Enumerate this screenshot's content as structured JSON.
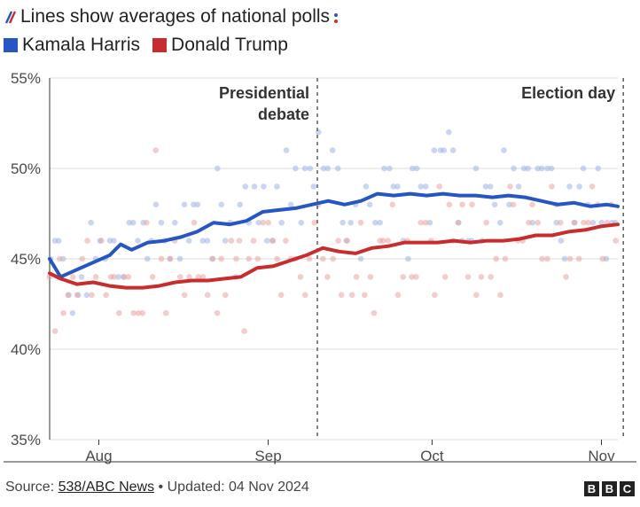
{
  "header": {
    "title": "Lines show averages of national polls",
    "legend": [
      {
        "label": "Kamala Harris",
        "color": "#2655c4"
      },
      {
        "label": "Donald Trump",
        "color": "#c82c2c"
      }
    ]
  },
  "chart_data": {
    "type": "line",
    "y_ticks": [
      {
        "value": 35,
        "label": "35%"
      },
      {
        "value": 40,
        "label": "40%"
      },
      {
        "value": 45,
        "label": "45%"
      },
      {
        "value": 50,
        "label": "50%"
      },
      {
        "value": 55,
        "label": "55%"
      }
    ],
    "ylim": [
      35,
      55
    ],
    "x_range": [
      "2024-07-23",
      "2024-11-04"
    ],
    "x_ticks": [
      {
        "date": "2024-08-01",
        "label": "Aug"
      },
      {
        "date": "2024-09-01",
        "label": "Sep"
      },
      {
        "date": "2024-10-01",
        "label": "Oct"
      },
      {
        "date": "2024-11-01",
        "label": "Nov"
      }
    ],
    "grid": true,
    "annotations": [
      {
        "date": "2024-09-10",
        "lines": [
          "Presidential",
          "debate"
        ],
        "anchor": "end"
      },
      {
        "date": "2024-11-05",
        "lines": [
          "Election day"
        ],
        "anchor": "end"
      }
    ],
    "series": [
      {
        "name": "Kamala Harris",
        "color": "#2655c4",
        "points": [
          [
            "2024-07-23",
            45.0
          ],
          [
            "2024-07-25",
            44.0
          ],
          [
            "2024-07-28",
            44.4
          ],
          [
            "2024-07-31",
            44.8
          ],
          [
            "2024-08-03",
            45.2
          ],
          [
            "2024-08-05",
            45.8
          ],
          [
            "2024-08-07",
            45.5
          ],
          [
            "2024-08-10",
            45.9
          ],
          [
            "2024-08-13",
            46.0
          ],
          [
            "2024-08-16",
            46.2
          ],
          [
            "2024-08-19",
            46.5
          ],
          [
            "2024-08-22",
            47.0
          ],
          [
            "2024-08-25",
            46.9
          ],
          [
            "2024-08-28",
            47.1
          ],
          [
            "2024-08-31",
            47.6
          ],
          [
            "2024-09-03",
            47.7
          ],
          [
            "2024-09-06",
            47.8
          ],
          [
            "2024-09-09",
            48.0
          ],
          [
            "2024-09-12",
            48.2
          ],
          [
            "2024-09-15",
            48.0
          ],
          [
            "2024-09-18",
            48.2
          ],
          [
            "2024-09-21",
            48.6
          ],
          [
            "2024-09-24",
            48.5
          ],
          [
            "2024-09-27",
            48.6
          ],
          [
            "2024-09-30",
            48.5
          ],
          [
            "2024-10-03",
            48.6
          ],
          [
            "2024-10-06",
            48.5
          ],
          [
            "2024-10-09",
            48.5
          ],
          [
            "2024-10-12",
            48.4
          ],
          [
            "2024-10-15",
            48.5
          ],
          [
            "2024-10-18",
            48.4
          ],
          [
            "2024-10-21",
            48.2
          ],
          [
            "2024-10-24",
            48.0
          ],
          [
            "2024-10-27",
            48.1
          ],
          [
            "2024-10-30",
            47.9
          ],
          [
            "2024-11-02",
            48.0
          ],
          [
            "2024-11-04",
            47.9
          ]
        ]
      },
      {
        "name": "Donald Trump",
        "color": "#c82c2c",
        "points": [
          [
            "2024-07-23",
            44.2
          ],
          [
            "2024-07-25",
            43.9
          ],
          [
            "2024-07-28",
            43.6
          ],
          [
            "2024-07-31",
            43.7
          ],
          [
            "2024-08-03",
            43.5
          ],
          [
            "2024-08-06",
            43.4
          ],
          [
            "2024-08-09",
            43.4
          ],
          [
            "2024-08-12",
            43.5
          ],
          [
            "2024-08-15",
            43.7
          ],
          [
            "2024-08-18",
            43.8
          ],
          [
            "2024-08-21",
            43.8
          ],
          [
            "2024-08-24",
            43.9
          ],
          [
            "2024-08-27",
            44.0
          ],
          [
            "2024-08-30",
            44.5
          ],
          [
            "2024-09-02",
            44.6
          ],
          [
            "2024-09-05",
            44.9
          ],
          [
            "2024-09-08",
            45.2
          ],
          [
            "2024-09-11",
            45.6
          ],
          [
            "2024-09-14",
            45.4
          ],
          [
            "2024-09-17",
            45.3
          ],
          [
            "2024-09-20",
            45.6
          ],
          [
            "2024-09-23",
            45.7
          ],
          [
            "2024-09-26",
            45.9
          ],
          [
            "2024-09-29",
            45.9
          ],
          [
            "2024-10-02",
            45.9
          ],
          [
            "2024-10-05",
            46.0
          ],
          [
            "2024-10-08",
            45.9
          ],
          [
            "2024-10-11",
            46.0
          ],
          [
            "2024-10-14",
            46.0
          ],
          [
            "2024-10-17",
            46.1
          ],
          [
            "2024-10-20",
            46.3
          ],
          [
            "2024-10-23",
            46.3
          ],
          [
            "2024-10-26",
            46.5
          ],
          [
            "2024-10-29",
            46.6
          ],
          [
            "2024-11-01",
            46.8
          ],
          [
            "2024-11-04",
            46.9
          ]
        ]
      }
    ]
  },
  "footer": {
    "source_prefix": "Source:",
    "source_name": "538/ABC News",
    "separator": "•",
    "updated": "Updated: 04 Nov 2024",
    "logo_letters": [
      "B",
      "B",
      "C"
    ]
  }
}
